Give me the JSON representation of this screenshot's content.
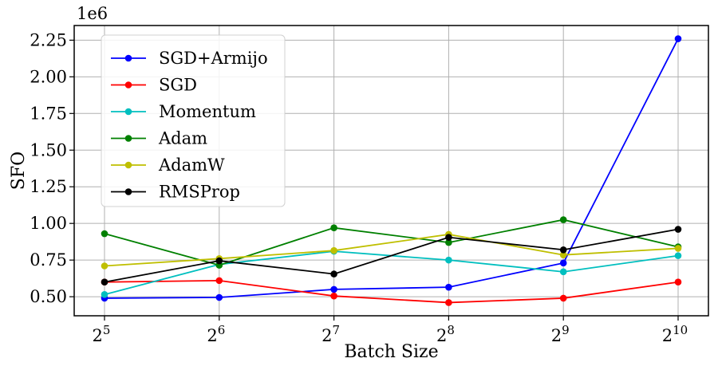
{
  "chart_data": {
    "type": "line",
    "xlabel": "Batch Size",
    "ylabel": "SFO",
    "offset_text": "1e6",
    "x_base": "2",
    "x_exponents": [
      "5",
      "6",
      "7",
      "8",
      "9",
      "10"
    ],
    "x": [
      32,
      64,
      128,
      256,
      512,
      1024
    ],
    "xscale": "log2",
    "yticks": [
      0.5,
      0.75,
      1.0,
      1.25,
      1.5,
      1.75,
      2.0,
      2.25
    ],
    "ytick_labels": [
      "0.50",
      "0.75",
      "1.00",
      "1.25",
      "1.50",
      "1.75",
      "2.00",
      "2.25"
    ],
    "ylim": [
      0.37,
      2.35
    ],
    "grid": true,
    "legend_position": "upper-left",
    "series": [
      {
        "name": "SGD+Armijo",
        "color": "#0000ff",
        "values": [
          0.49,
          0.495,
          0.55,
          0.565,
          0.73,
          2.26
        ]
      },
      {
        "name": "SGD",
        "color": "#ff0000",
        "values": [
          0.6,
          0.61,
          0.505,
          0.46,
          0.49,
          0.6
        ]
      },
      {
        "name": "Momentum",
        "color": "#00bfbf",
        "values": [
          0.515,
          0.72,
          0.81,
          0.75,
          0.67,
          0.78
        ]
      },
      {
        "name": "Adam",
        "color": "#008000",
        "values": [
          0.93,
          0.715,
          0.97,
          0.87,
          1.025,
          0.84
        ]
      },
      {
        "name": "AdamW",
        "color": "#bfbf00",
        "values": [
          0.71,
          0.76,
          0.815,
          0.925,
          0.785,
          0.83
        ]
      },
      {
        "name": "RMSProp",
        "color": "#000000",
        "values": [
          0.6,
          0.745,
          0.655,
          0.905,
          0.82,
          0.96
        ]
      }
    ]
  }
}
